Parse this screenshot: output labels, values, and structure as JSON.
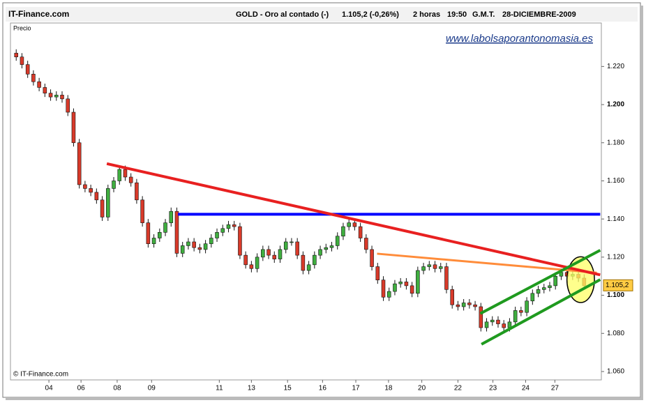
{
  "chart_data": {
    "type": "candlestick",
    "site": "IT-Finance.com",
    "title": "GOLD - Oro al contado (-)",
    "price_change": "1.105,2 (-0,26%)",
    "period": "2 horas",
    "time": "19:50",
    "timezone": "G.M.T.",
    "date": "28-DICIEMBRE-2009",
    "y_label": "Precio",
    "watermark": "www.labolsaporantonomasia.es",
    "copyright": "© IT-Finance.com",
    "up_color": "#3fae3f",
    "down_color": "#d83a2a",
    "open": [
      1.227,
      1.225,
      1.221,
      1.216,
      1.212,
      1.209,
      1.206,
      1.204,
      1.205,
      1.203,
      1.196,
      1.18,
      1.158,
      1.156,
      1.154,
      1.15,
      1.141,
      1.156,
      1.16,
      1.166,
      1.162,
      1.159,
      1.15,
      1.138,
      1.127,
      1.13,
      1.133,
      1.138,
      1.144,
      1.122,
      1.126,
      1.128,
      1.125,
      1.124,
      1.127,
      1.13,
      1.133,
      1.135,
      1.137,
      1.136,
      1.121,
      1.116,
      1.114,
      1.12,
      1.124,
      1.121,
      1.119,
      1.124,
      1.128,
      1.128,
      1.121,
      1.113,
      1.116,
      1.121,
      1.124,
      1.125,
      1.126,
      1.131,
      1.136,
      1.138,
      1.136,
      1.13,
      1.124,
      1.115,
      1.108,
      1.099,
      1.102,
      1.106,
      1.107,
      1.105,
      1.101,
      1.113,
      1.115,
      1.116,
      1.114,
      1.115,
      1.103,
      1.095,
      1.094,
      1.096,
      1.095,
      1.094,
      1.083,
      1.086,
      1.087,
      1.085,
      1.083,
      1.086,
      1.092,
      1.091,
      1.097,
      1.101,
      1.103,
      1.104,
      1.105,
      1.11,
      1.112,
      1.11,
      1.111,
      1.109
    ],
    "high": [
      1.229,
      1.227,
      1.223,
      1.218,
      1.214,
      1.211,
      1.208,
      1.207,
      1.207,
      1.205,
      1.198,
      1.182,
      1.16,
      1.158,
      1.156,
      1.152,
      1.158,
      1.162,
      1.168,
      1.168,
      1.164,
      1.161,
      1.152,
      1.14,
      1.132,
      1.135,
      1.14,
      1.146,
      1.146,
      1.128,
      1.13,
      1.13,
      1.127,
      1.129,
      1.132,
      1.135,
      1.137,
      1.139,
      1.139,
      1.138,
      1.123,
      1.118,
      1.122,
      1.126,
      1.126,
      1.123,
      1.126,
      1.13,
      1.13,
      1.13,
      1.123,
      1.118,
      1.123,
      1.126,
      1.127,
      1.128,
      1.133,
      1.138,
      1.14,
      1.14,
      1.138,
      1.132,
      1.126,
      1.117,
      1.11,
      1.104,
      1.108,
      1.109,
      1.109,
      1.107,
      1.115,
      1.117,
      1.118,
      1.118,
      1.117,
      1.117,
      1.105,
      1.097,
      1.098,
      1.098,
      1.097,
      1.096,
      1.088,
      1.089,
      1.089,
      1.087,
      1.088,
      1.094,
      1.094,
      1.099,
      1.103,
      1.105,
      1.106,
      1.107,
      1.112,
      1.114,
      1.114,
      1.113,
      1.113,
      1.111
    ],
    "low": [
      1.223,
      1.219,
      1.214,
      1.21,
      1.207,
      1.204,
      1.202,
      1.202,
      1.201,
      1.194,
      1.178,
      1.156,
      1.154,
      1.152,
      1.148,
      1.139,
      1.139,
      1.154,
      1.158,
      1.16,
      1.157,
      1.148,
      1.136,
      1.125,
      1.125,
      1.128,
      1.131,
      1.136,
      1.12,
      1.12,
      1.124,
      1.123,
      1.122,
      1.122,
      1.125,
      1.128,
      1.131,
      1.133,
      1.134,
      1.119,
      1.114,
      1.112,
      1.112,
      1.118,
      1.119,
      1.117,
      1.117,
      1.122,
      1.126,
      1.119,
      1.111,
      1.111,
      1.114,
      1.119,
      1.122,
      1.123,
      1.124,
      1.129,
      1.134,
      1.134,
      1.128,
      1.122,
      1.113,
      1.106,
      1.097,
      1.097,
      1.1,
      1.104,
      1.103,
      1.099,
      1.099,
      1.111,
      1.113,
      1.112,
      1.112,
      1.101,
      1.093,
      1.092,
      1.092,
      1.093,
      1.092,
      1.081,
      1.081,
      1.084,
      1.083,
      1.081,
      1.081,
      1.084,
      1.089,
      1.089,
      1.095,
      1.099,
      1.101,
      1.102,
      1.103,
      1.108,
      1.108,
      1.108,
      1.107,
      1.103
    ],
    "close": [
      1.225,
      1.221,
      1.216,
      1.212,
      1.209,
      1.206,
      1.204,
      1.205,
      1.203,
      1.196,
      1.18,
      1.158,
      1.156,
      1.154,
      1.15,
      1.141,
      1.156,
      1.16,
      1.166,
      1.162,
      1.159,
      1.15,
      1.138,
      1.127,
      1.13,
      1.133,
      1.138,
      1.144,
      1.122,
      1.126,
      1.128,
      1.125,
      1.124,
      1.127,
      1.13,
      1.133,
      1.135,
      1.137,
      1.136,
      1.121,
      1.116,
      1.114,
      1.12,
      1.124,
      1.121,
      1.119,
      1.124,
      1.128,
      1.128,
      1.121,
      1.113,
      1.116,
      1.121,
      1.124,
      1.125,
      1.126,
      1.131,
      1.136,
      1.138,
      1.136,
      1.13,
      1.124,
      1.115,
      1.108,
      1.099,
      1.102,
      1.106,
      1.107,
      1.105,
      1.101,
      1.113,
      1.115,
      1.116,
      1.114,
      1.115,
      1.103,
      1.095,
      1.094,
      1.096,
      1.095,
      1.094,
      1.083,
      1.086,
      1.087,
      1.085,
      1.083,
      1.086,
      1.092,
      1.091,
      1.097,
      1.101,
      1.103,
      1.104,
      1.105,
      1.11,
      1.112,
      1.11,
      1.111,
      1.109,
      1.105
    ],
    "last_price": {
      "value": 1.1052,
      "label": "1.105,2"
    },
    "xlim": [
      -1,
      102
    ],
    "xticks": [
      {
        "value": 5.7,
        "label": "04"
      },
      {
        "value": 11.3,
        "label": "06"
      },
      {
        "value": 17.6,
        "label": "08"
      },
      {
        "value": 23.6,
        "label": "09"
      },
      {
        "value": 35.4,
        "label": "11"
      },
      {
        "value": 41.0,
        "label": "13"
      },
      {
        "value": 47.3,
        "label": "15"
      },
      {
        "value": 53.4,
        "label": "16"
      },
      {
        "value": 59.2,
        "label": "17"
      },
      {
        "value": 64.9,
        "label": "18"
      },
      {
        "value": 70.7,
        "label": "20"
      },
      {
        "value": 77.0,
        "label": "22"
      },
      {
        "value": 83.1,
        "label": "23"
      },
      {
        "value": 88.8,
        "label": "24"
      },
      {
        "value": 93.9,
        "label": "27"
      }
    ],
    "ylim": [
      1.0556,
      1.2428
    ],
    "yticks": [
      {
        "value": 1.06,
        "label": "1.060"
      },
      {
        "value": 1.08,
        "label": "1.080"
      },
      {
        "value": 1.1,
        "label": "1.100"
      },
      {
        "value": 1.12,
        "label": "1.120"
      },
      {
        "value": 1.14,
        "label": "1.140"
      },
      {
        "value": 1.16,
        "label": "1.160"
      },
      {
        "value": 1.18,
        "label": "1.180"
      },
      {
        "value": 1.2,
        "label": "1.200"
      },
      {
        "value": 1.22,
        "label": "1.220"
      }
    ],
    "trend_lines": [
      {
        "color": "#0000ff",
        "width": 4,
        "x": [
          28.2,
          101.8
        ],
        "y": [
          1.1425,
          1.1425
        ]
      },
      {
        "color": "#ff8c3a",
        "width": 3,
        "x": [
          62.9,
          101.2
        ],
        "y": [
          1.1218,
          1.1118
        ]
      },
      {
        "color": "#e82020",
        "width": 4,
        "x": [
          15.8,
          101.8
        ],
        "y": [
          1.169,
          1.1107
        ]
      },
      {
        "color": "#1f9a1f",
        "width": 4,
        "x": [
          80.9,
          101.8
        ],
        "y": [
          1.0904,
          1.1236
        ]
      },
      {
        "color": "#1f9a1f",
        "width": 4,
        "x": [
          81.1,
          101.8
        ],
        "y": [
          1.0743,
          1.1082
        ]
      }
    ],
    "highlight": {
      "color": "#ffff66",
      "x": 98.4,
      "y": 1.1082,
      "rx": 2.4,
      "ry": 0.012
    }
  }
}
